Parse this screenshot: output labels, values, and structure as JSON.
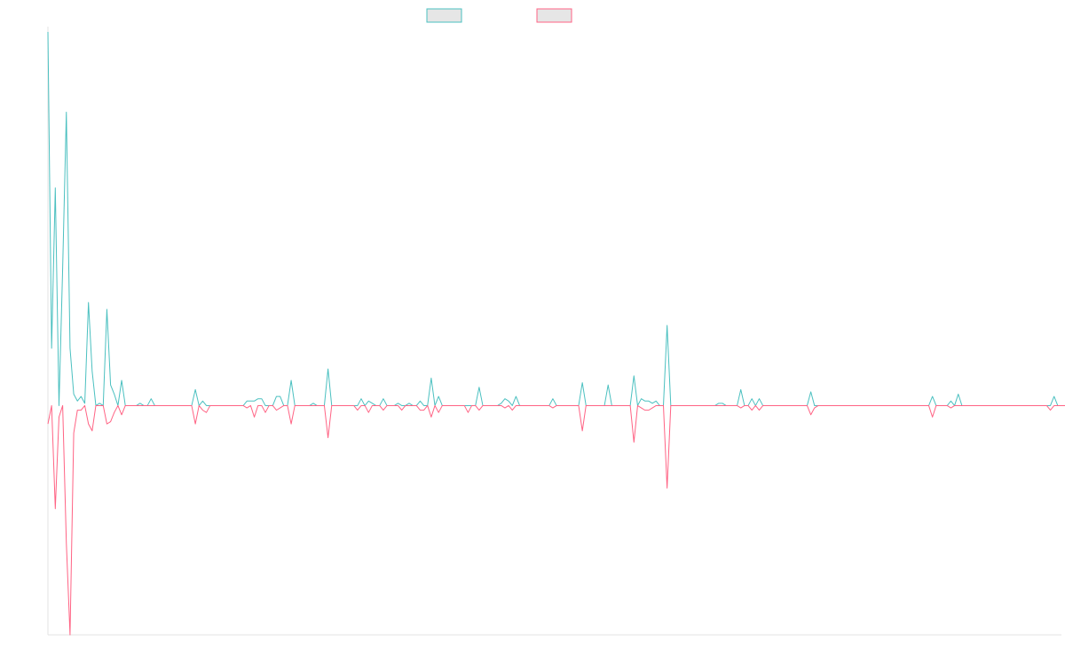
{
  "chart_data": {
    "type": "line",
    "title": "",
    "xlabel": "",
    "ylabel": "",
    "grid": false,
    "legend": "top-center",
    "ylim": [
      -1,
      1.63
    ],
    "xlim": [
      0,
      275
    ],
    "series": [
      {
        "color": "#4bc0c0",
        "values": [
          1.63,
          0.25,
          0.95,
          0.0,
          0.6,
          1.28,
          0.25,
          0.05,
          0.02,
          0.04,
          0.01,
          0.45,
          0.15,
          0.0,
          0.01,
          0.0,
          0.42,
          0.09,
          0.05,
          0.0,
          0.11,
          0.0,
          0.0,
          0.0,
          0.0,
          0.01,
          0.0,
          0.0,
          0.03,
          0.0,
          0.0,
          0.0,
          0.0,
          0.0,
          0.0,
          0.0,
          0.0,
          0.0,
          0.0,
          0.0,
          0.07,
          0.0,
          0.02,
          0.0,
          0.0,
          0.0,
          0.0,
          0.0,
          0.0,
          0.0,
          0.0,
          0.0,
          0.0,
          0.0,
          0.02,
          0.02,
          0.02,
          0.03,
          0.03,
          0.0,
          0.0,
          0.0,
          0.04,
          0.04,
          0.0,
          0.0,
          0.11,
          0.0,
          0.0,
          0.0,
          0.0,
          0.0,
          0.01,
          0.0,
          0.0,
          0.0,
          0.16,
          0.0,
          0.0,
          0.0,
          0.0,
          0.0,
          0.0,
          0.0,
          0.0,
          0.03,
          0.0,
          0.02,
          0.01,
          0.0,
          0.0,
          0.03,
          0.0,
          0.0,
          0.0,
          0.01,
          0.0,
          0.0,
          0.01,
          0.0,
          0.0,
          0.02,
          0.0,
          0.0,
          0.12,
          0.0,
          0.04,
          0.0,
          0.0,
          0.0,
          0.0,
          0.0,
          0.0,
          0.0,
          0.0,
          0.0,
          0.0,
          0.08,
          0.0,
          0.0,
          0.0,
          0.0,
          0.0,
          0.01,
          0.03,
          0.02,
          0.0,
          0.04,
          0.0,
          0.0,
          0.0,
          0.0,
          0.0,
          0.0,
          0.0,
          0.0,
          0.0,
          0.03,
          0.0,
          0.0,
          0.0,
          0.0,
          0.0,
          0.0,
          0.0,
          0.1,
          0.0,
          0.0,
          0.0,
          0.0,
          0.0,
          0.0,
          0.09,
          0.0,
          0.0,
          0.0,
          0.0,
          0.0,
          0.0,
          0.13,
          0.0,
          0.03,
          0.02,
          0.02,
          0.01,
          0.02,
          0.0,
          0.0,
          0.35,
          0.0,
          0.0,
          0.0,
          0.0,
          0.0,
          0.0,
          0.0,
          0.0,
          0.0,
          0.0,
          0.0,
          0.0,
          0.0,
          0.01,
          0.01,
          0.0,
          0.0,
          0.0,
          0.0,
          0.07,
          0.0,
          0.0,
          0.03,
          0.0,
          0.03,
          0.0,
          0.0,
          0.0,
          0.0,
          0.0,
          0.0,
          0.0,
          0.0,
          0.0,
          0.0,
          0.0,
          0.0,
          0.0,
          0.06,
          0.0,
          0.0,
          0.0,
          0.0,
          0.0,
          0.0,
          0.0,
          0.0,
          0.0,
          0.0,
          0.0,
          0.0,
          0.0,
          0.0,
          0.0,
          0.0,
          0.0,
          0.0,
          0.0,
          0.0,
          0.0,
          0.0,
          0.0,
          0.0,
          0.0,
          0.0,
          0.0,
          0.0,
          0.0,
          0.0,
          0.0,
          0.0,
          0.04,
          0.0,
          0.0,
          0.0,
          0.0,
          0.02,
          0.0,
          0.05,
          0.0,
          0.0,
          0.0,
          0.0,
          0.0,
          0.0,
          0.0,
          0.0,
          0.0,
          0.0,
          0.0,
          0.0,
          0.0,
          0.0,
          0.0,
          0.0,
          0.0,
          0.0,
          0.0,
          0.0,
          0.0,
          0.0,
          0.0,
          0.0,
          0.0,
          0.04,
          0.0,
          0.0,
          0.0,
          0.0,
          0.0,
          0.0,
          0.0,
          0.0,
          0.0,
          0.0,
          0.0,
          0.0,
          0.0,
          0.0
        ]
      },
      {
        "color": "#ff6384",
        "values": [
          -0.08,
          0.0,
          -0.45,
          -0.05,
          0.0,
          -0.6,
          -1.0,
          -0.12,
          -0.02,
          -0.02,
          0.0,
          -0.08,
          -0.11,
          0.0,
          0.0,
          0.0,
          -0.08,
          -0.07,
          -0.03,
          0.0,
          -0.04,
          0.0,
          0.0,
          0.0,
          0.0,
          0.0,
          0.0,
          0.0,
          0.0,
          0.0,
          0.0,
          0.0,
          0.0,
          0.0,
          0.0,
          0.0,
          0.0,
          0.0,
          0.0,
          0.0,
          -0.08,
          0.0,
          -0.02,
          -0.03,
          0.0,
          0.0,
          0.0,
          0.0,
          0.0,
          0.0,
          0.0,
          0.0,
          0.0,
          0.0,
          -0.01,
          0.0,
          -0.05,
          0.0,
          0.0,
          -0.03,
          0.0,
          0.0,
          -0.02,
          -0.01,
          0.0,
          0.0,
          -0.08,
          0.0,
          0.0,
          0.0,
          0.0,
          0.0,
          0.0,
          0.0,
          0.0,
          0.0,
          -0.14,
          0.0,
          0.0,
          0.0,
          0.0,
          0.0,
          0.0,
          0.0,
          -0.02,
          0.0,
          0.0,
          -0.03,
          0.0,
          0.0,
          0.0,
          -0.02,
          0.0,
          0.0,
          0.0,
          0.0,
          -0.02,
          0.0,
          0.0,
          0.0,
          0.0,
          -0.02,
          -0.02,
          0.0,
          -0.05,
          0.0,
          -0.03,
          0.0,
          0.0,
          0.0,
          0.0,
          0.0,
          0.0,
          0.0,
          -0.03,
          0.0,
          0.0,
          -0.02,
          0.0,
          0.0,
          0.0,
          0.0,
          0.0,
          0.0,
          -0.01,
          0.0,
          -0.02,
          0.0,
          0.0,
          0.0,
          0.0,
          0.0,
          0.0,
          0.0,
          0.0,
          0.0,
          0.0,
          -0.01,
          0.0,
          0.0,
          0.0,
          0.0,
          0.0,
          0.0,
          0.0,
          -0.11,
          0.0,
          0.0,
          0.0,
          0.0,
          0.0,
          0.0,
          0.0,
          0.0,
          0.0,
          0.0,
          0.0,
          0.0,
          0.0,
          -0.16,
          0.0,
          -0.01,
          -0.02,
          -0.02,
          -0.01,
          0.0,
          0.0,
          0.0,
          -0.36,
          0.0,
          0.0,
          0.0,
          0.0,
          0.0,
          0.0,
          0.0,
          0.0,
          0.0,
          0.0,
          0.0,
          0.0,
          0.0,
          0.0,
          0.0,
          0.0,
          0.0,
          0.0,
          0.0,
          -0.01,
          0.0,
          0.0,
          -0.02,
          0.0,
          -0.02,
          0.0,
          0.0,
          0.0,
          0.0,
          0.0,
          0.0,
          0.0,
          0.0,
          0.0,
          0.0,
          0.0,
          0.0,
          0.0,
          -0.04,
          -0.01,
          0.0,
          0.0,
          0.0,
          0.0,
          0.0,
          0.0,
          0.0,
          0.0,
          0.0,
          0.0,
          0.0,
          0.0,
          0.0,
          0.0,
          0.0,
          0.0,
          0.0,
          0.0,
          0.0,
          0.0,
          0.0,
          0.0,
          0.0,
          0.0,
          0.0,
          0.0,
          0.0,
          0.0,
          0.0,
          0.0,
          0.0,
          -0.05,
          0.0,
          0.0,
          0.0,
          0.0,
          -0.01,
          0.0,
          0.0,
          0.0,
          0.0,
          0.0,
          0.0,
          0.0,
          0.0,
          0.0,
          0.0,
          0.0,
          0.0,
          0.0,
          0.0,
          0.0,
          0.0,
          0.0,
          0.0,
          0.0,
          0.0,
          0.0,
          0.0,
          0.0,
          0.0,
          0.0,
          0.0,
          -0.02,
          0.0,
          0.0,
          0.0,
          0.0,
          0.0,
          0.0,
          0.0,
          0.0,
          0.0,
          0.0,
          0.0,
          0.0,
          0.0,
          0.0
        ]
      }
    ]
  }
}
